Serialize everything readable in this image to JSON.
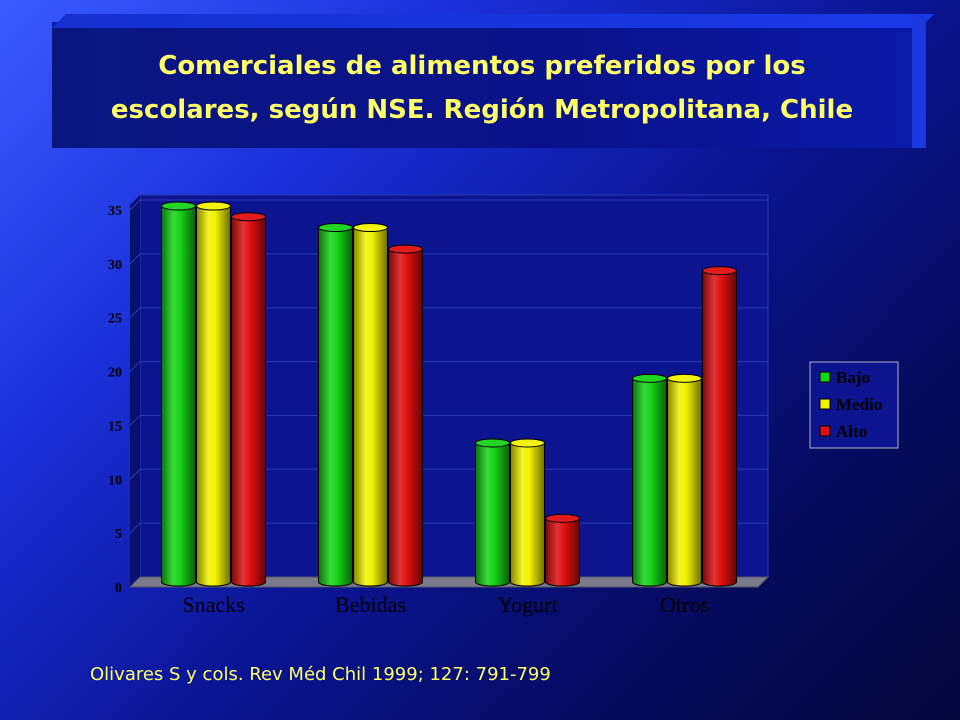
{
  "title": {
    "line1": "Comerciales de alimentos preferidos por los",
    "line2": "escolares, según NSE. Región Metropolitana, Chile"
  },
  "citation": "Olivares S y cols. Rev Méd Chil 1999; 127: 791-799",
  "colors": {
    "Bajo": "#16d316",
    "Medio": "#f2f200",
    "Alto": "#e01010",
    "plot_bg": "#0c1490",
    "floor": "#7a7a8a"
  },
  "chart_data": {
    "type": "bar",
    "title": "Comerciales de alimentos preferidos por los escolares, según NSE. Región Metropolitana, Chile",
    "categories": [
      "Snacks",
      "Bebidas",
      "Yogurt",
      "Otros"
    ],
    "series": [
      {
        "name": "Bajo",
        "values": [
          35,
          33,
          13,
          19
        ]
      },
      {
        "name": "Medio",
        "values": [
          35,
          33,
          13,
          19
        ]
      },
      {
        "name": "Alto",
        "values": [
          34,
          31,
          6,
          29
        ]
      }
    ],
    "ylim": [
      0,
      35
    ],
    "yticks": [
      0,
      5,
      10,
      15,
      20,
      25,
      30,
      35
    ],
    "xlabel": "",
    "ylabel": "",
    "grid": true,
    "legend": "right"
  }
}
